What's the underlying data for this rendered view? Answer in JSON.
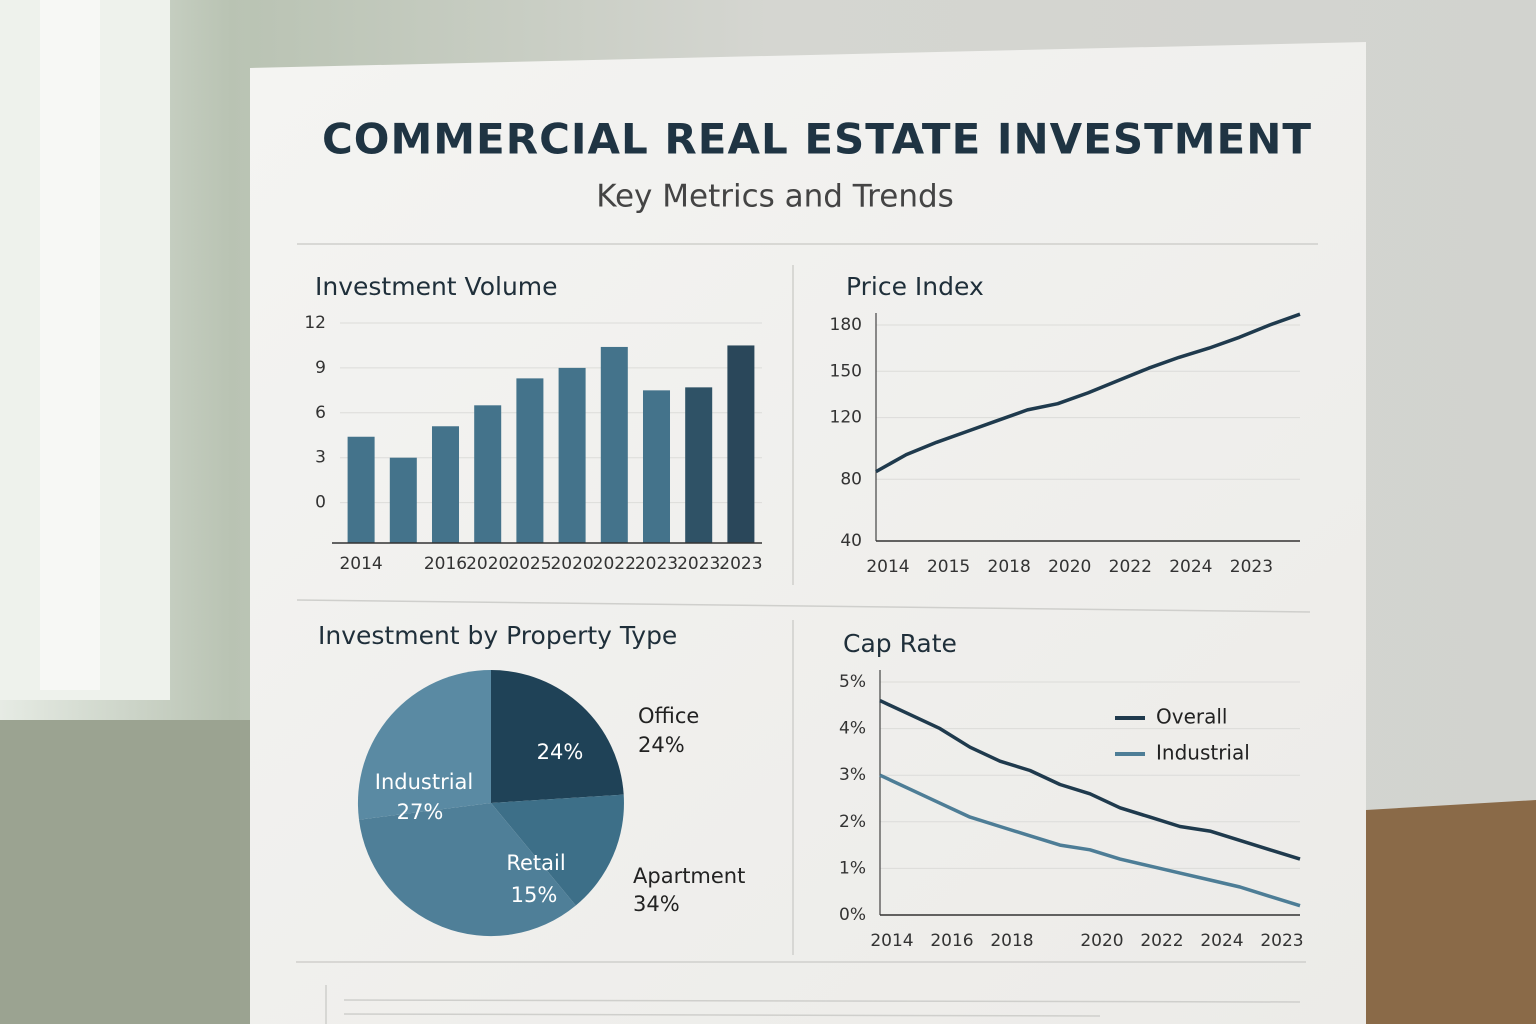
{
  "header": {
    "title": "COMMERCIAL REAL ESTATE INVESTMENT",
    "subtitle": "Key Metrics and Trends"
  },
  "chart_data": [
    {
      "type": "bar",
      "title": "Investment Volume",
      "categories": [
        "2014",
        null,
        "2016",
        "2020",
        "2025",
        "2020",
        "2022",
        "2023",
        "2023",
        "2023"
      ],
      "values": [
        4.4,
        3.0,
        5.1,
        6.5,
        8.3,
        9.0,
        10.4,
        7.5,
        7.7,
        10.5
      ],
      "colors": [
        "#44738b",
        "#44738b",
        "#44738b",
        "#44738b",
        "#44738b",
        "#44738b",
        "#44738b",
        "#44738b",
        "#2f5266",
        "#2a475a"
      ],
      "ylim": [
        -2.7,
        12
      ],
      "yticks": [
        0,
        3,
        6,
        9,
        12
      ],
      "grid": true
    },
    {
      "type": "line",
      "title": "Price Index",
      "categories": [
        "2014",
        null,
        "2015",
        null,
        "2018",
        null,
        "2020",
        null,
        "2022",
        null,
        "2024",
        null,
        "2023",
        null,
        null
      ],
      "values": [
        85,
        96,
        104,
        111,
        118,
        125,
        129,
        136,
        144,
        152,
        159,
        165,
        172,
        180,
        187
      ],
      "color": "#1f3a4d",
      "ylim": [
        40,
        180
      ],
      "yticks": [
        40,
        80,
        120,
        150,
        180
      ],
      "grid": true
    },
    {
      "type": "pie",
      "title": "Investment by Property Type",
      "categories": [
        "Office",
        "Retail",
        "Apartment",
        "Industrial"
      ],
      "values": [
        24,
        15,
        34,
        27
      ],
      "value_labels": [
        "24%",
        "15%",
        "34%",
        "27%"
      ],
      "colors": [
        "#1f4257",
        "#3d6f88",
        "#4f7f98",
        "#5a8aa3"
      ]
    },
    {
      "type": "line",
      "title": "Cap Rate",
      "categories": [
        "2014",
        null,
        "2016",
        null,
        "2018",
        null,
        null,
        "2020",
        null,
        "2022",
        null,
        "2024",
        null,
        "2023",
        null
      ],
      "series": [
        {
          "name": "Overall",
          "color": "#1f3a4d",
          "values": [
            4.6,
            4.3,
            4.0,
            3.6,
            3.3,
            3.1,
            2.8,
            2.6,
            2.3,
            2.1,
            1.9,
            1.8,
            1.6,
            1.4,
            1.2
          ]
        },
        {
          "name": "Industrial",
          "color": "#4d7d96",
          "values": [
            3.0,
            2.7,
            2.4,
            2.1,
            1.9,
            1.7,
            1.5,
            1.4,
            1.2,
            1.05,
            0.9,
            0.75,
            0.6,
            0.4,
            0.2
          ]
        }
      ],
      "ylim": [
        0,
        5
      ],
      "yticks": [
        {
          "value": 0,
          "label": "0%"
        },
        {
          "value": 1,
          "label": "1%"
        },
        {
          "value": 2,
          "label": "2%"
        },
        {
          "value": 3,
          "label": "3%"
        },
        {
          "value": 4,
          "label": "4%"
        },
        {
          "value": 5,
          "label": "5%"
        }
      ],
      "grid": true,
      "legend": "upper-right"
    }
  ]
}
